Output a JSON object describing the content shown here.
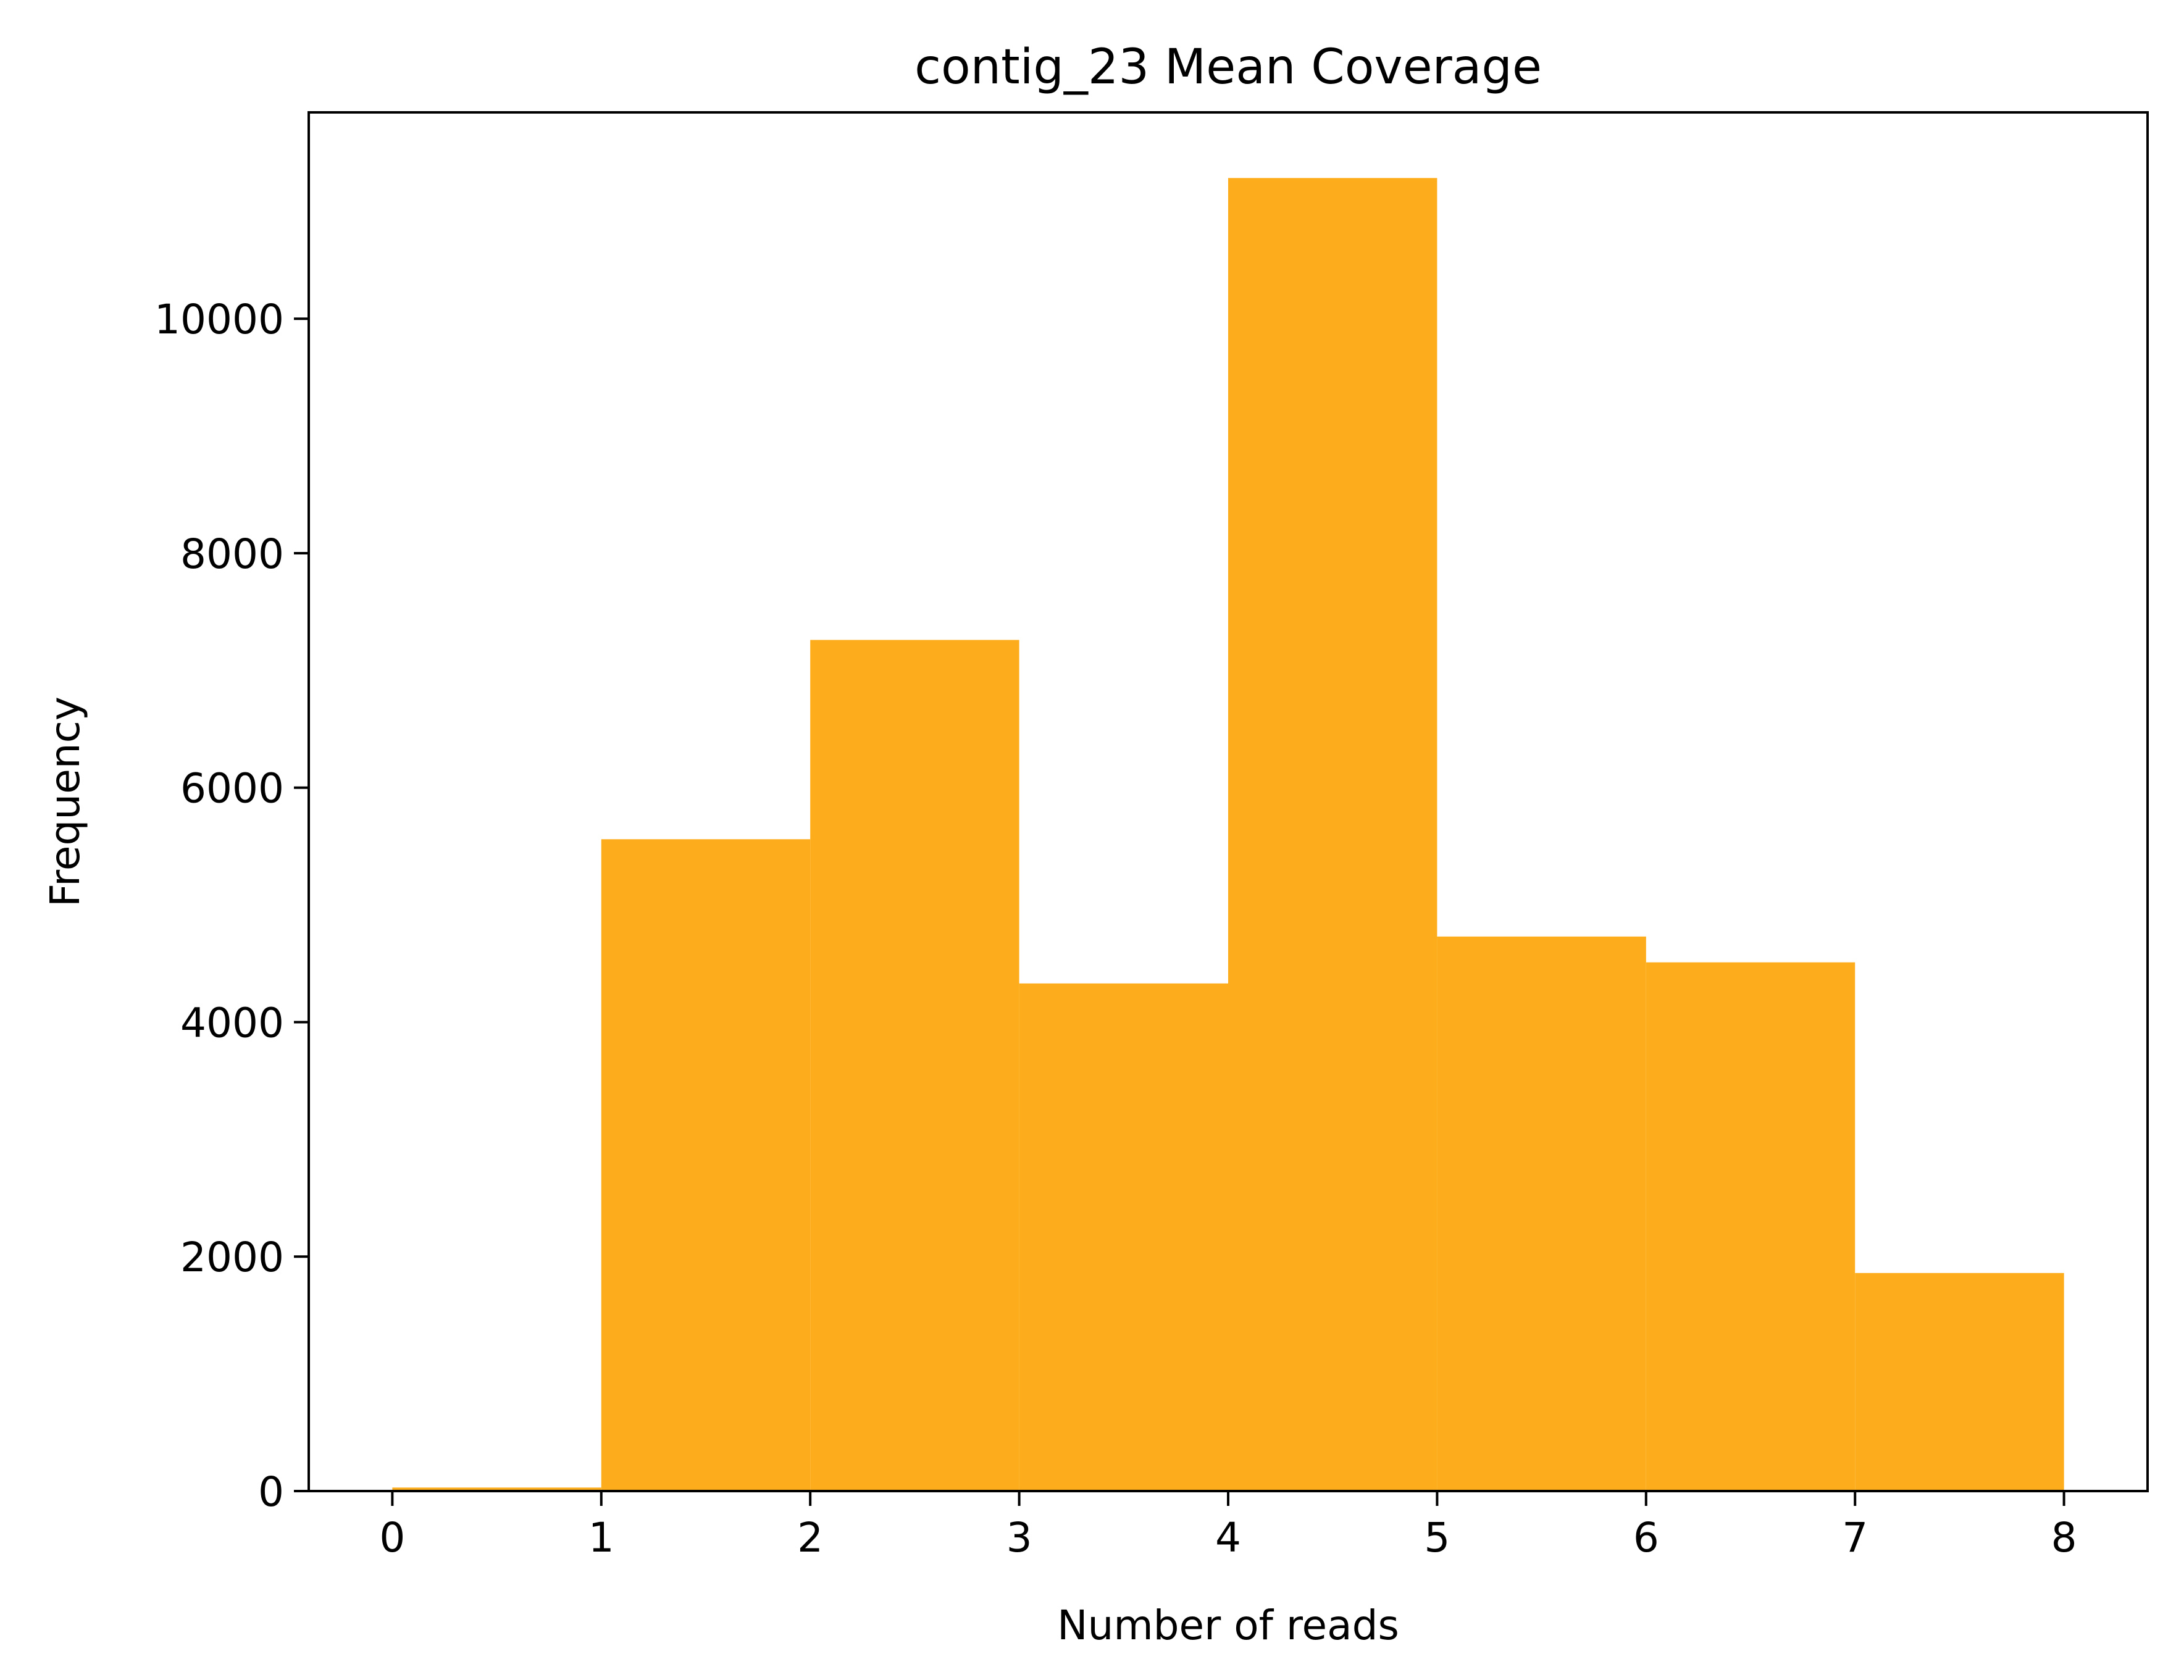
{
  "chart_data": {
    "type": "bar",
    "title": "contig_23 Mean Coverage",
    "xlabel": "Number of reads",
    "ylabel": "Frequency",
    "bins": [
      {
        "start": 0,
        "end": 1,
        "value": 30
      },
      {
        "start": 1,
        "end": 2,
        "value": 5560
      },
      {
        "start": 2,
        "end": 3,
        "value": 7260
      },
      {
        "start": 3,
        "end": 4,
        "value": 4330
      },
      {
        "start": 4,
        "end": 5,
        "value": 11200
      },
      {
        "start": 5,
        "end": 6,
        "value": 4730
      },
      {
        "start": 6,
        "end": 7,
        "value": 4510
      },
      {
        "start": 7,
        "end": 8,
        "value": 1860
      }
    ],
    "xlim": [
      -0.4,
      8.4
    ],
    "ylim": [
      0,
      11760
    ],
    "x_ticks": [
      "0",
      "1",
      "2",
      "3",
      "4",
      "5",
      "6",
      "7",
      "8"
    ],
    "y_ticks": [
      "0",
      "2000",
      "4000",
      "6000",
      "8000",
      "10000"
    ],
    "bar_color": "#FDAD1C",
    "grid": false,
    "legend": "none"
  }
}
